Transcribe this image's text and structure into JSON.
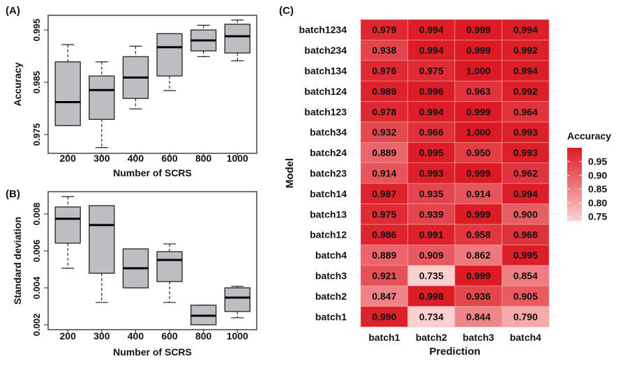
{
  "chart_data": [
    {
      "panel_label": "(A)",
      "type": "boxplot",
      "xlabel": "Number of SCRS",
      "ylabel": "Accuracy",
      "categories": [
        "200",
        "300",
        "400",
        "600",
        "800",
        "1000"
      ],
      "yticks": [
        "0.975",
        "0.985",
        "0.995"
      ],
      "ytick_values": [
        0.975,
        0.985,
        0.995
      ],
      "ylim": [
        0.9715,
        0.9985
      ],
      "boxes": [
        {
          "whisker_low": 0.9767,
          "q1": 0.9767,
          "median": 0.9812,
          "q3": 0.9889,
          "whisker_high": 0.9922
        },
        {
          "whisker_low": 0.9725,
          "q1": 0.9779,
          "median": 0.9835,
          "q3": 0.9862,
          "whisker_high": 0.9889
        },
        {
          "whisker_low": 0.9799,
          "q1": 0.9819,
          "median": 0.9859,
          "q3": 0.9899,
          "whisker_high": 0.9919
        },
        {
          "whisker_low": 0.9834,
          "q1": 0.9862,
          "median": 0.9917,
          "q3": 0.9943,
          "whisker_high": 0.9943
        },
        {
          "whisker_low": 0.9899,
          "q1": 0.991,
          "median": 0.993,
          "q3": 0.995,
          "whisker_high": 0.9959
        },
        {
          "whisker_low": 0.9891,
          "q1": 0.9906,
          "median": 0.9938,
          "q3": 0.9961,
          "whisker_high": 0.9969
        }
      ]
    },
    {
      "panel_label": "(B)",
      "type": "boxplot",
      "xlabel": "Number of SCRS",
      "ylabel": "Standard deviation",
      "categories": [
        "200",
        "300",
        "400",
        "600",
        "800",
        "1000"
      ],
      "yticks": [
        "0.002",
        "0.004",
        "0.006",
        "0.008"
      ],
      "ytick_values": [
        0.002,
        0.004,
        0.006,
        0.008
      ],
      "ylim": [
        0.0017,
        0.0093
      ],
      "boxes": [
        {
          "whisker_low": 0.00506,
          "q1": 0.00642,
          "median": 0.00774,
          "q3": 0.00838,
          "whisker_high": 0.00894
        },
        {
          "whisker_low": 0.00321,
          "q1": 0.00479,
          "median": 0.0074,
          "q3": 0.00845,
          "whisker_high": 0.00845
        },
        {
          "whisker_low": 0.004,
          "q1": 0.004,
          "median": 0.00506,
          "q3": 0.00611,
          "whisker_high": 0.00611
        },
        {
          "whisker_low": 0.00321,
          "q1": 0.00434,
          "median": 0.00551,
          "q3": 0.00596,
          "whisker_high": 0.00638
        },
        {
          "whisker_low": 0.002,
          "q1": 0.002,
          "median": 0.00249,
          "q3": 0.00306,
          "whisker_high": 0.00306
        },
        {
          "whisker_low": 0.00238,
          "q1": 0.00272,
          "median": 0.00347,
          "q3": 0.004,
          "whisker_high": 0.00408
        }
      ]
    },
    {
      "panel_label": "(C)",
      "type": "heatmap",
      "xlabel": "Prediction",
      "ylabel": "Model",
      "columns": [
        "batch1",
        "batch2",
        "batch3",
        "batch4"
      ],
      "rows": [
        "batch1234",
        "batch234",
        "batch134",
        "batch124",
        "batch123",
        "batch34",
        "batch24",
        "batch23",
        "batch14",
        "batch13",
        "batch12",
        "batch4",
        "batch3",
        "batch2",
        "batch1"
      ],
      "values": [
        [
          0.979,
          0.994,
          0.999,
          0.994
        ],
        [
          0.938,
          0.994,
          0.999,
          0.992
        ],
        [
          0.976,
          0.975,
          1.0,
          0.994
        ],
        [
          0.989,
          0.996,
          0.963,
          0.992
        ],
        [
          0.978,
          0.994,
          0.999,
          0.964
        ],
        [
          0.932,
          0.966,
          1.0,
          0.993
        ],
        [
          0.889,
          0.995,
          0.95,
          0.993
        ],
        [
          0.914,
          0.993,
          0.999,
          0.962
        ],
        [
          0.987,
          0.935,
          0.914,
          0.994
        ],
        [
          0.975,
          0.939,
          0.999,
          0.9
        ],
        [
          0.986,
          0.991,
          0.958,
          0.968
        ],
        [
          0.889,
          0.909,
          0.862,
          0.995
        ],
        [
          0.921,
          0.735,
          0.999,
          0.854
        ],
        [
          0.847,
          0.998,
          0.936,
          0.905
        ],
        [
          0.99,
          0.734,
          0.844,
          0.79
        ]
      ],
      "legend": {
        "title": "Accuracy",
        "ticks": [
          "0.95",
          "0.90",
          "0.85",
          "0.80",
          "0.75"
        ],
        "tick_values": [
          0.95,
          0.9,
          0.85,
          0.8,
          0.75
        ],
        "range": [
          0.734,
          1.0
        ],
        "color_low": "#fdd0d0",
        "color_high": "#dc1a24",
        "placement": "right"
      }
    }
  ]
}
